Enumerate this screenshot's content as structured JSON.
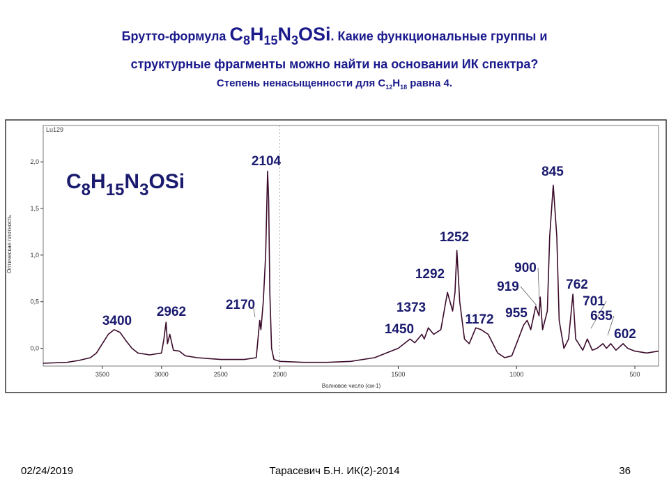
{
  "slide": {
    "title_prefix": "Брутто-формула ",
    "formula": [
      "C",
      "8",
      "H",
      "15",
      "N",
      "3",
      "OSi"
    ],
    "title_suffix": ". Какие функциональные группы и",
    "line2": "структурные фрагменты можно найти на основании ИК спектра?",
    "line3_prefix": "Степень ненасыщенности для   ",
    "line3_formula": [
      "C",
      "12",
      "H",
      "18"
    ],
    "line3_suffix": "  равна 4."
  },
  "chart_data": {
    "type": "line",
    "sample": "Lu129",
    "formula": [
      "C",
      "8",
      "H",
      "15",
      "N",
      "3",
      "OSi"
    ],
    "x_label": "Волновое число (см-1)",
    "y_label": "Оптическая плотность",
    "color": "#3a0a2a",
    "xlim": [
      4000,
      400
    ],
    "x_scale_break": 2000,
    "x_scale_factor": 2,
    "xticks": [
      3500,
      3000,
      2500,
      2000,
      1500,
      1000,
      500
    ],
    "ylim": [
      -0.19,
      2.39
    ],
    "yticks": [
      {
        "value": 0,
        "label": "0,0"
      },
      {
        "value": 0.5,
        "label": "0,5"
      },
      {
        "value": 1,
        "label": "1,0"
      },
      {
        "value": 1.5,
        "label": "1,5"
      },
      {
        "value": 2,
        "label": "2,0"
      }
    ],
    "x": [
      4000,
      3800,
      3700,
      3600,
      3550,
      3500,
      3450,
      3400,
      3350,
      3300,
      3250,
      3200,
      3100,
      3000,
      2980,
      2962,
      2950,
      2930,
      2900,
      2850,
      2800,
      2700,
      2600,
      2500,
      2300,
      2200,
      2170,
      2160,
      2140,
      2120,
      2104,
      2095,
      2085,
      2070,
      2050,
      2000,
      1900,
      1800,
      1700,
      1600,
      1550,
      1500,
      1470,
      1450,
      1430,
      1400,
      1390,
      1373,
      1350,
      1320,
      1292,
      1270,
      1260,
      1252,
      1240,
      1220,
      1200,
      1172,
      1150,
      1120,
      1100,
      1080,
      1050,
      1020,
      1000,
      970,
      955,
      940,
      919,
      905,
      900,
      890,
      870,
      860,
      845,
      830,
      820,
      800,
      780,
      762,
      750,
      720,
      701,
      680,
      660,
      635,
      620,
      602,
      580,
      550,
      530,
      500,
      450,
      400
    ],
    "values": [
      -0.16,
      -0.15,
      -0.13,
      -0.1,
      -0.05,
      0.05,
      0.15,
      0.2,
      0.17,
      0.08,
      0,
      -0.05,
      -0.07,
      -0.05,
      0.1,
      0.28,
      0.05,
      0.15,
      -0.02,
      -0.03,
      -0.08,
      -0.1,
      -0.11,
      -0.12,
      -0.12,
      -0.1,
      0.3,
      0.2,
      0.5,
      1,
      1.9,
      1.6,
      0.6,
      0,
      -0.12,
      -0.14,
      -0.15,
      -0.15,
      -0.14,
      -0.1,
      -0.05,
      0,
      0.06,
      0.1,
      0.06,
      0.15,
      0.1,
      0.22,
      0.15,
      0.2,
      0.6,
      0.4,
      0.6,
      1.05,
      0.5,
      0.1,
      0.05,
      0.22,
      0.2,
      0.15,
      0.05,
      -0.05,
      -0.1,
      -0.08,
      0.05,
      0.25,
      0.3,
      0.2,
      0.45,
      0.35,
      0.55,
      0.2,
      0.4,
      1.2,
      1.75,
      1.2,
      0.3,
      0,
      0.1,
      0.58,
      0.1,
      -0.02,
      0.1,
      -0.02,
      0,
      0.05,
      0,
      0.05,
      -0.02,
      0.05,
      0,
      -0.03,
      -0.05,
      -0.03
    ],
    "annotations": [
      "3400",
      "2962",
      "2170",
      "2104",
      "1450",
      "1373",
      "1292",
      "1252",
      "1172",
      "955",
      "919",
      "900",
      "845",
      "762",
      "701",
      "635",
      "602"
    ]
  },
  "footer": {
    "date": "02/24/2019",
    "author": "Тарасевич Б.Н. ИК(2)-2014",
    "page": "36"
  }
}
